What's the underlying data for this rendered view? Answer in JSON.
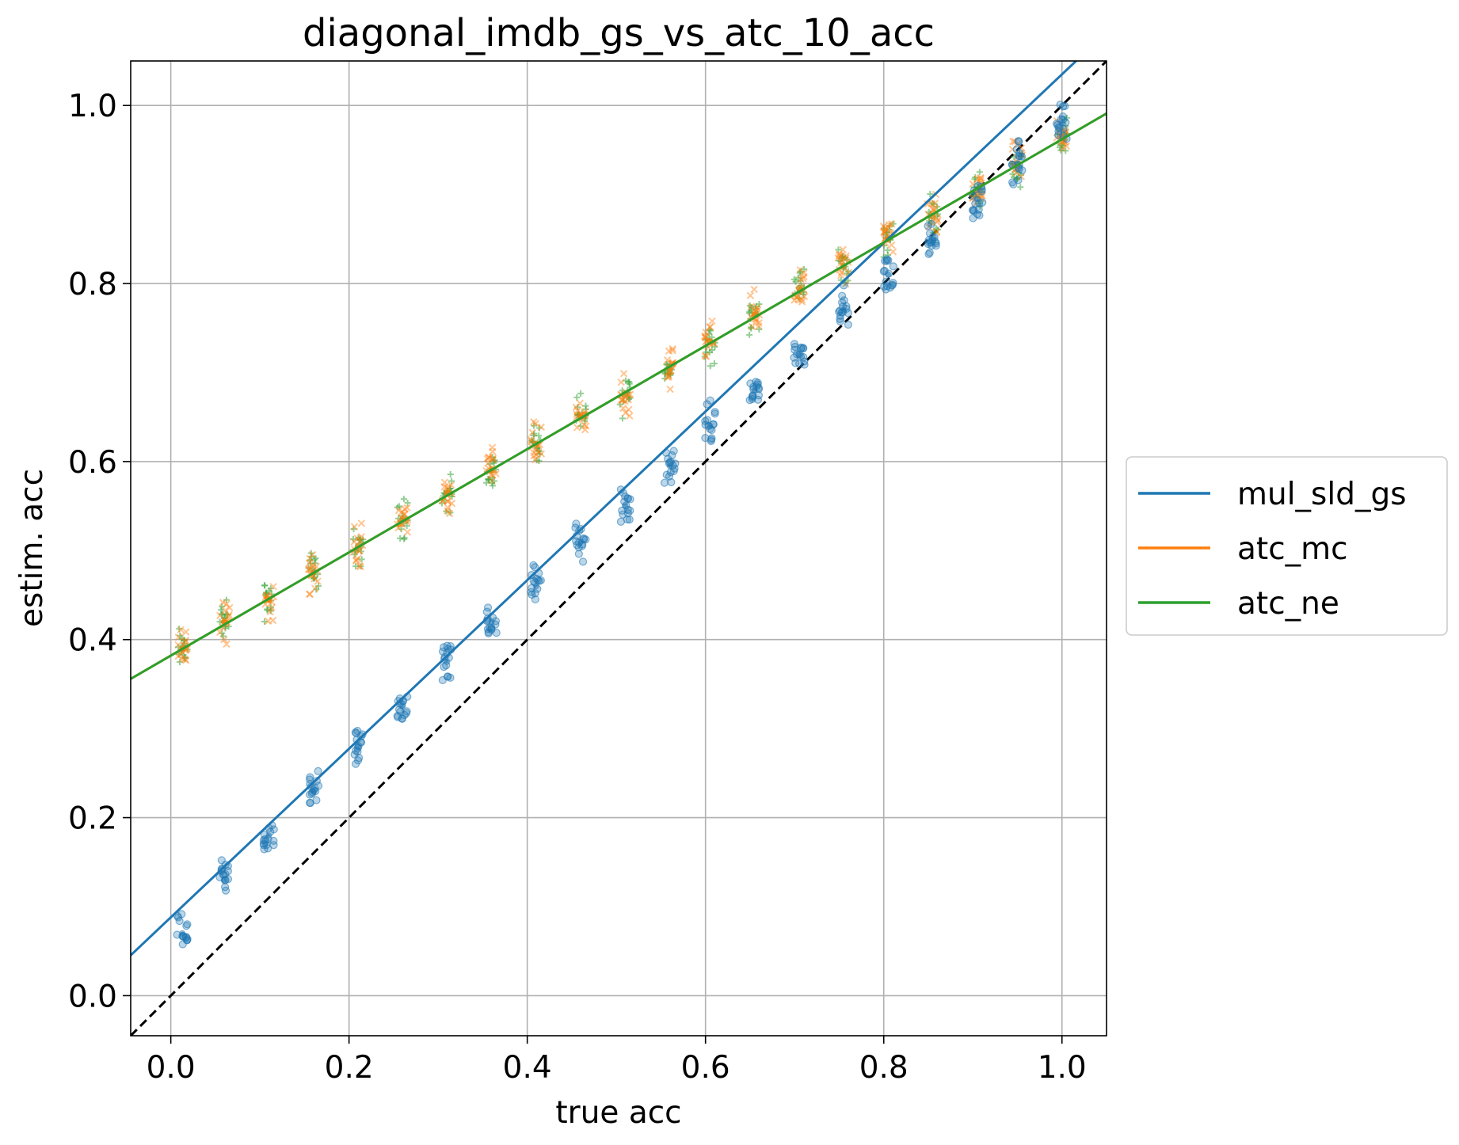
{
  "chart_data": {
    "type": "scatter",
    "title": "diagonal_imdb_gs_vs_atc_10_acc",
    "xlabel": "true acc",
    "ylabel": "estim. acc",
    "xlim": [
      -0.045,
      1.05
    ],
    "ylim": [
      -0.045,
      1.05
    ],
    "xticks": [
      "0.0",
      "0.2",
      "0.4",
      "0.6",
      "0.8",
      "1.0"
    ],
    "yticks": [
      "0.0",
      "0.2",
      "0.4",
      "0.6",
      "0.8",
      "1.0"
    ],
    "grid": true,
    "legend_position": "center-right, outside plot",
    "reference_line": {
      "style": "dashed",
      "color": "#000000",
      "slope": 1,
      "intercept": 0
    },
    "series": [
      {
        "name": "mul_sld_gs",
        "color": "#1f77b4",
        "marker": "circle",
        "fit": {
          "slope": 0.947,
          "intercept": 0.088
        },
        "points": [
          {
            "x": 0.013,
            "y": 0.07
          },
          {
            "x": 0.06,
            "y": 0.13
          },
          {
            "x": 0.11,
            "y": 0.18
          },
          {
            "x": 0.16,
            "y": 0.23
          },
          {
            "x": 0.21,
            "y": 0.28
          },
          {
            "x": 0.26,
            "y": 0.325
          },
          {
            "x": 0.31,
            "y": 0.375
          },
          {
            "x": 0.36,
            "y": 0.42
          },
          {
            "x": 0.41,
            "y": 0.46
          },
          {
            "x": 0.46,
            "y": 0.51
          },
          {
            "x": 0.51,
            "y": 0.55
          },
          {
            "x": 0.56,
            "y": 0.595
          },
          {
            "x": 0.605,
            "y": 0.64
          },
          {
            "x": 0.655,
            "y": 0.68
          },
          {
            "x": 0.705,
            "y": 0.72
          },
          {
            "x": 0.755,
            "y": 0.77
          },
          {
            "x": 0.805,
            "y": 0.81
          },
          {
            "x": 0.855,
            "y": 0.85
          },
          {
            "x": 0.905,
            "y": 0.895
          },
          {
            "x": 0.95,
            "y": 0.935
          },
          {
            "x": 1.0,
            "y": 0.98
          }
        ]
      },
      {
        "name": "atc_mc",
        "color": "#ff7f0e",
        "marker": "x",
        "fit": {
          "slope": 0.58,
          "intercept": 0.382
        },
        "points": [
          {
            "x": 0.013,
            "y": 0.39
          },
          {
            "x": 0.06,
            "y": 0.42
          },
          {
            "x": 0.11,
            "y": 0.445
          },
          {
            "x": 0.16,
            "y": 0.475
          },
          {
            "x": 0.21,
            "y": 0.505
          },
          {
            "x": 0.26,
            "y": 0.535
          },
          {
            "x": 0.31,
            "y": 0.565
          },
          {
            "x": 0.36,
            "y": 0.59
          },
          {
            "x": 0.41,
            "y": 0.62
          },
          {
            "x": 0.46,
            "y": 0.65
          },
          {
            "x": 0.51,
            "y": 0.675
          },
          {
            "x": 0.56,
            "y": 0.705
          },
          {
            "x": 0.605,
            "y": 0.735
          },
          {
            "x": 0.655,
            "y": 0.765
          },
          {
            "x": 0.705,
            "y": 0.795
          },
          {
            "x": 0.755,
            "y": 0.82
          },
          {
            "x": 0.805,
            "y": 0.85
          },
          {
            "x": 0.855,
            "y": 0.875
          },
          {
            "x": 0.905,
            "y": 0.905
          },
          {
            "x": 0.95,
            "y": 0.935
          },
          {
            "x": 1.0,
            "y": 0.965
          }
        ]
      },
      {
        "name": "atc_ne",
        "color": "#2ca02c",
        "marker": "plus",
        "fit": {
          "slope": 0.58,
          "intercept": 0.382
        },
        "points": [
          {
            "x": 0.013,
            "y": 0.39
          },
          {
            "x": 0.06,
            "y": 0.42
          },
          {
            "x": 0.11,
            "y": 0.445
          },
          {
            "x": 0.16,
            "y": 0.475
          },
          {
            "x": 0.21,
            "y": 0.505
          },
          {
            "x": 0.26,
            "y": 0.535
          },
          {
            "x": 0.31,
            "y": 0.565
          },
          {
            "x": 0.36,
            "y": 0.59
          },
          {
            "x": 0.41,
            "y": 0.62
          },
          {
            "x": 0.46,
            "y": 0.65
          },
          {
            "x": 0.51,
            "y": 0.675
          },
          {
            "x": 0.56,
            "y": 0.705
          },
          {
            "x": 0.605,
            "y": 0.735
          },
          {
            "x": 0.655,
            "y": 0.765
          },
          {
            "x": 0.705,
            "y": 0.795
          },
          {
            "x": 0.755,
            "y": 0.82
          },
          {
            "x": 0.805,
            "y": 0.85
          },
          {
            "x": 0.855,
            "y": 0.875
          },
          {
            "x": 0.905,
            "y": 0.905
          },
          {
            "x": 0.95,
            "y": 0.935
          },
          {
            "x": 1.0,
            "y": 0.965
          }
        ]
      }
    ]
  }
}
